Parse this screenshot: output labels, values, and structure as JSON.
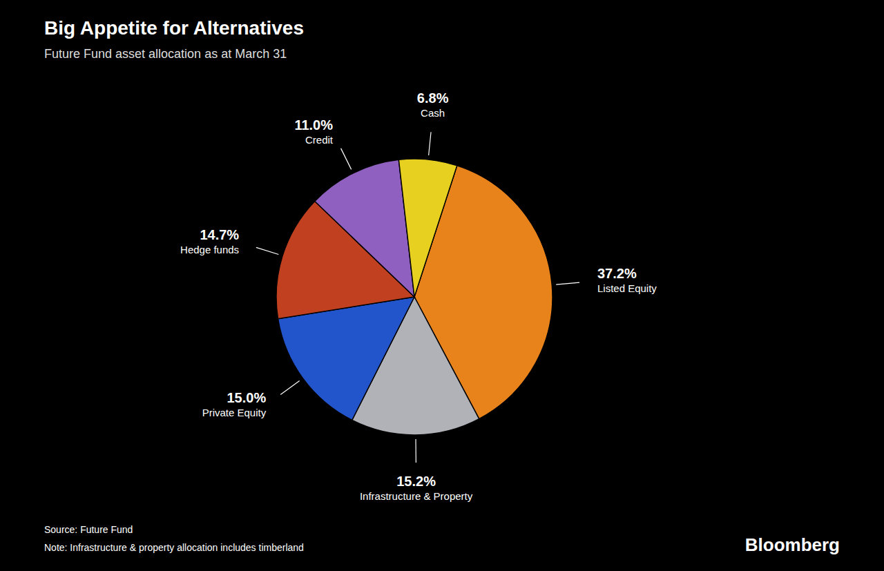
{
  "chart_data": {
    "type": "pie",
    "title": "Big Appetite for Alternatives",
    "subtitle": "Future Fund asset allocation as at March 31",
    "categories": [
      "Listed Equity",
      "Infrastructure & Property",
      "Private Equity",
      "Hedge funds",
      "Credit",
      "Cash"
    ],
    "values": [
      37.2,
      15.2,
      15.0,
      14.7,
      11.0,
      6.8
    ],
    "value_labels": [
      "37.2%",
      "15.2%",
      "15.0%",
      "14.7%",
      "11.0%",
      "6.8%"
    ],
    "colors": [
      "#E8821A",
      "#B0B2B8",
      "#2255CC",
      "#C04020",
      "#9060C0",
      "#E8D020"
    ],
    "data_labels": true,
    "annotations": [
      "Source: Future Fund",
      "Note: Infrastructure & property allocation includes timberland",
      "Bloomberg"
    ]
  }
}
